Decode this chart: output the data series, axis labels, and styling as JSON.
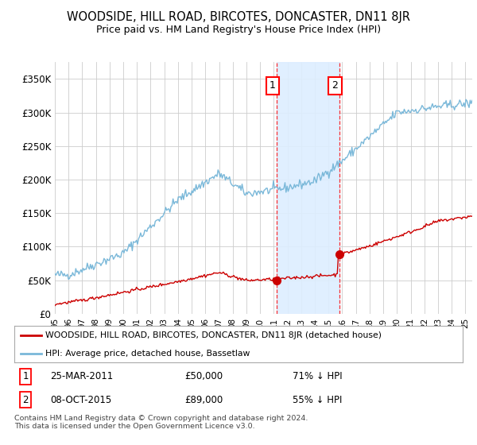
{
  "title": "WOODSIDE, HILL ROAD, BIRCOTES, DONCASTER, DN11 8JR",
  "subtitle": "Price paid vs. HM Land Registry's House Price Index (HPI)",
  "hpi_label": "HPI: Average price, detached house, Bassetlaw",
  "property_label": "WOODSIDE, HILL ROAD, BIRCOTES, DONCASTER, DN11 8JR (detached house)",
  "hpi_color": "#7ab8d9",
  "property_color": "#cc0000",
  "background_color": "#ffffff",
  "plot_bg_color": "#ffffff",
  "grid_color": "#cccccc",
  "span_color": "#ddeeff",
  "ylim": [
    0,
    375000
  ],
  "yticks": [
    0,
    50000,
    100000,
    150000,
    200000,
    250000,
    300000,
    350000
  ],
  "ytick_labels": [
    "£0",
    "£50K",
    "£100K",
    "£150K",
    "£200K",
    "£250K",
    "£300K",
    "£350K"
  ],
  "transactions": [
    {
      "date": 2011.22,
      "price": 50000,
      "label": "1"
    },
    {
      "date": 2015.77,
      "price": 89000,
      "label": "2"
    }
  ],
  "annotation1_date": "25-MAR-2011",
  "annotation1_price": "£50,000",
  "annotation1_pct": "71% ↓ HPI",
  "annotation2_date": "08-OCT-2015",
  "annotation2_price": "£89,000",
  "annotation2_pct": "55% ↓ HPI",
  "footnote": "Contains HM Land Registry data © Crown copyright and database right 2024.\nThis data is licensed under the Open Government Licence v3.0.",
  "xmin": 1995,
  "xmax": 2025.5
}
